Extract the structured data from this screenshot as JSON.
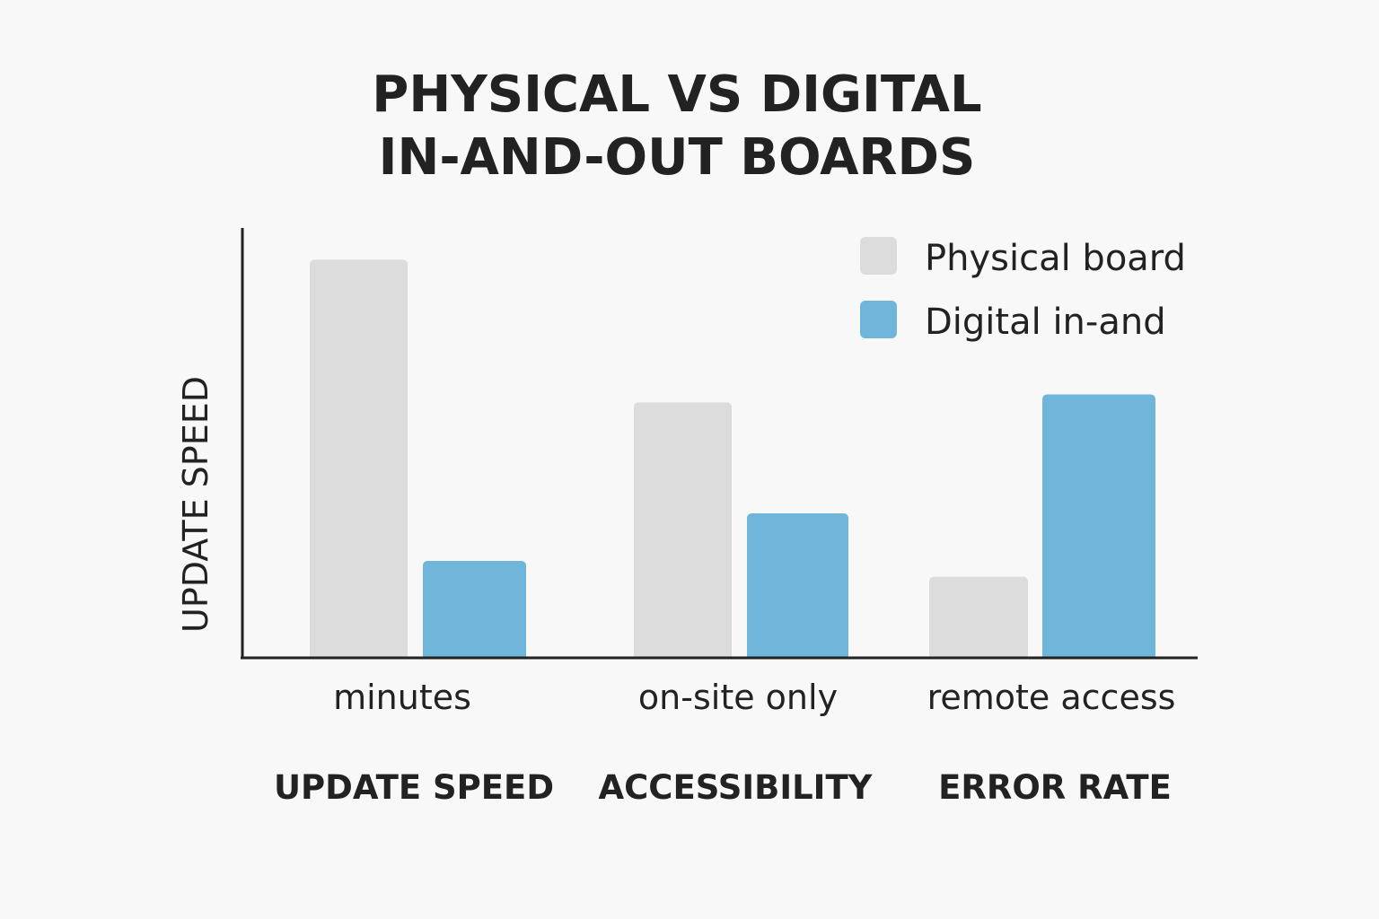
{
  "chart_data": {
    "type": "bar",
    "title_lines": [
      "PHYSICAL VS DIGITAL",
      "IN-AND-OUT BOARDS"
    ],
    "ylabel": "UPDATE SPEED",
    "xlabel": "",
    "tick_labels": [
      "minutes",
      "on-site only",
      "remote access"
    ],
    "categories": [
      "UPDATE SPEED",
      "ACCESSIBILITY",
      "ERROR RATE"
    ],
    "series": [
      {
        "name": "Physical board",
        "color": "#dcdcdc",
        "values": [
          100,
          64,
          20
        ]
      },
      {
        "name": "Digital in-and",
        "color": "#6fb6da",
        "values": [
          24,
          36,
          66
        ]
      }
    ],
    "ylim": [
      0,
      108
    ],
    "grid": false,
    "y_ticks_shown": false,
    "legend_position": "top-right",
    "axis_color": "#222222"
  }
}
